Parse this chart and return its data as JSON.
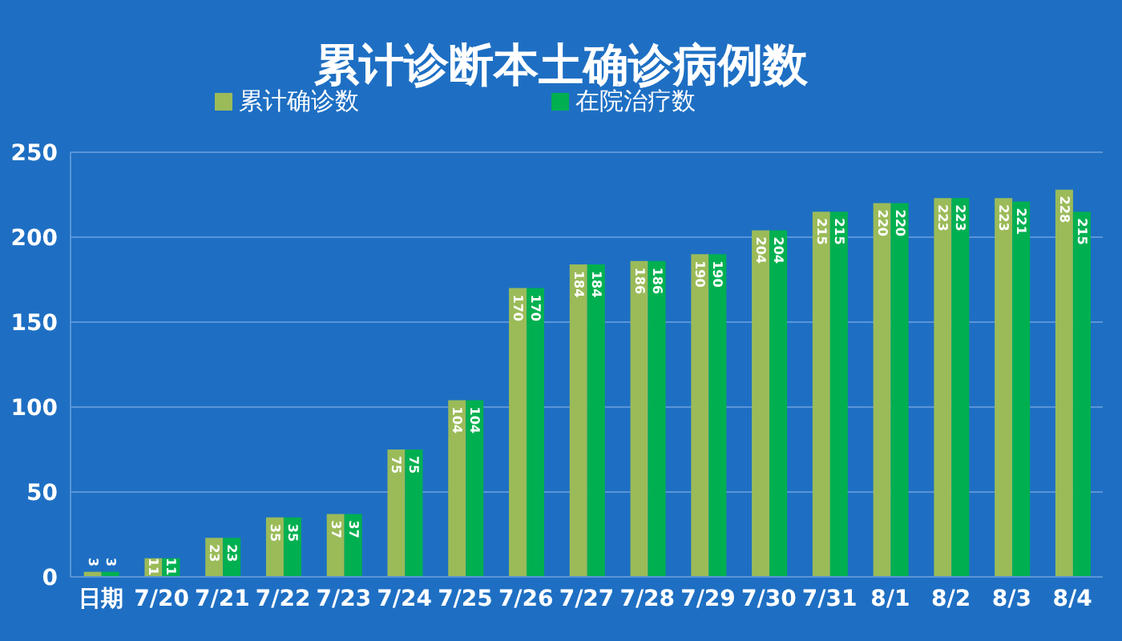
{
  "chart_data": {
    "type": "bar",
    "title": "累计诊断本土确诊病例数",
    "categories": [
      "日期",
      "7/20",
      "7/21",
      "7/22",
      "7/23",
      "7/24",
      "7/25",
      "7/26",
      "7/27",
      "7/28",
      "7/29",
      "7/30",
      "7/31",
      "8/1",
      "8/2",
      "8/3",
      "8/4"
    ],
    "series": [
      {
        "name": "累计确诊数",
        "color": "#9bbb59",
        "values": [
          3,
          11,
          23,
          35,
          37,
          75,
          104,
          170,
          184,
          186,
          190,
          204,
          215,
          220,
          223,
          223,
          228
        ]
      },
      {
        "name": "在院治疗数",
        "color": "#00b050",
        "values": [
          3,
          11,
          23,
          35,
          37,
          75,
          104,
          170,
          184,
          186,
          190,
          204,
          215,
          220,
          223,
          221,
          215
        ]
      }
    ],
    "ylim": [
      0,
      250
    ],
    "yticks": [
      0,
      50,
      100,
      150,
      200,
      250
    ],
    "grid": "y",
    "legend": "top",
    "data_labels": true
  }
}
